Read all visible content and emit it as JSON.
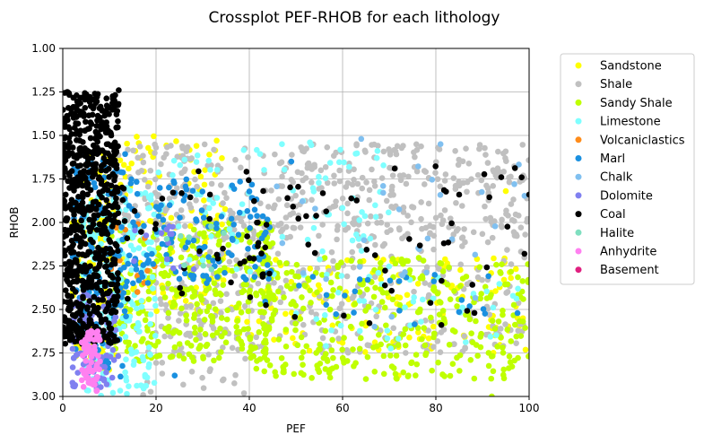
{
  "chart_data": {
    "type": "scatter",
    "title": "Crossplot PEF-RHOB for each lithology",
    "xlabel": "PEF",
    "ylabel": "RHOB",
    "xlim": [
      0,
      100
    ],
    "ylim": [
      3.0,
      1.0
    ],
    "y_inverted": true,
    "grid": true,
    "legend_position": "outside-right",
    "xticks": [
      "0",
      "20",
      "40",
      "60",
      "80",
      "100"
    ],
    "yticks": [
      "1.00",
      "1.25",
      "1.50",
      "1.75",
      "2.00",
      "2.25",
      "2.50",
      "2.75",
      "3.00"
    ],
    "series": [
      {
        "name": "Sandstone",
        "color": "#ffff00",
        "clusters": [
          {
            "x": [
              2,
              12
            ],
            "y": [
              1.6,
              2.85
            ],
            "n": 120
          },
          {
            "x": [
              12,
              35
            ],
            "y": [
              1.5,
              2.55
            ],
            "n": 110
          },
          {
            "x": [
              30,
              100
            ],
            "y": [
              2.2,
              2.75
            ],
            "n": 140
          }
        ],
        "points": [
          [
            72,
            2.88
          ],
          [
            95,
            1.82
          ],
          [
            33,
            1.53
          ]
        ]
      },
      {
        "name": "Shale",
        "color": "#c0c0c0",
        "clusters": [
          {
            "x": [
              10,
              100
            ],
            "y": [
              1.55,
              2.1
            ],
            "n": 420
          },
          {
            "x": [
              20,
              100
            ],
            "y": [
              2.0,
              2.75
            ],
            "n": 320
          },
          {
            "x": [
              14,
              40
            ],
            "y": [
              2.6,
              3.0
            ],
            "n": 40
          }
        ],
        "points": [
          [
            63,
            1.55
          ],
          [
            92,
            3.0
          ]
        ]
      },
      {
        "name": "Sandy Shale",
        "color": "#bfff00",
        "clusters": [
          {
            "x": [
              10,
              45
            ],
            "y": [
              2.0,
              2.8
            ],
            "n": 330
          },
          {
            "x": [
              40,
              100
            ],
            "y": [
              2.2,
              2.9
            ],
            "n": 340
          }
        ],
        "points": [
          [
            92,
            3.0
          ],
          [
            65,
            2.9
          ]
        ]
      },
      {
        "name": "Limestone",
        "color": "#7fffff",
        "clusters": [
          {
            "x": [
              4,
              20
            ],
            "y": [
              1.8,
              3.0
            ],
            "n": 230
          },
          {
            "x": [
              20,
              70
            ],
            "y": [
              1.55,
              2.3
            ],
            "n": 90
          },
          {
            "x": [
              50,
              100
            ],
            "y": [
              2.3,
              2.75
            ],
            "n": 40
          }
        ],
        "points": [
          [
            47,
            1.55
          ],
          [
            53,
            1.54
          ]
        ]
      },
      {
        "name": "Volcaniclastics",
        "color": "#ff8c1a",
        "clusters": [
          {
            "x": [
              10,
              20
            ],
            "y": [
              2.0,
              2.45
            ],
            "n": 14
          }
        ],
        "points": [
          [
            16,
            2.4
          ]
        ]
      },
      {
        "name": "Marl",
        "color": "#1a90e0",
        "clusters": [
          {
            "x": [
              2,
              14
            ],
            "y": [
              1.6,
              2.9
            ],
            "n": 130
          },
          {
            "x": [
              14,
              45
            ],
            "y": [
              1.75,
              2.35
            ],
            "n": 130
          },
          {
            "x": [
              40,
              100
            ],
            "y": [
              2.3,
              2.6
            ],
            "n": 25
          }
        ],
        "points": [
          [
            24,
            2.88
          ],
          [
            49,
            1.65
          ]
        ]
      },
      {
        "name": "Chalk",
        "color": "#80c0f0",
        "clusters": [
          {
            "x": [
              45,
              100
            ],
            "y": [
              1.55,
              2.6
            ],
            "n": 30
          }
        ],
        "points": [
          [
            64,
            1.52
          ],
          [
            81,
            1.55
          ]
        ]
      },
      {
        "name": "Dolomite",
        "color": "#8080f0",
        "clusters": [
          {
            "x": [
              2,
              12
            ],
            "y": [
              2.4,
              2.95
            ],
            "n": 90
          },
          {
            "x": [
              12,
              30
            ],
            "y": [
              2.0,
              2.3
            ],
            "n": 15
          }
        ],
        "points": []
      },
      {
        "name": "Coal",
        "color": "#000000",
        "clusters": [
          {
            "x": [
              0,
              12
            ],
            "y": [
              1.25,
              2.7
            ],
            "n": 700
          },
          {
            "x": [
              12,
              45
            ],
            "y": [
              1.7,
              2.5
            ],
            "n": 40
          },
          {
            "x": [
              40,
              100
            ],
            "y": [
              1.65,
              2.6
            ],
            "n": 50
          }
        ],
        "points": [
          [
            1,
            1.25
          ],
          [
            12,
            1.24
          ],
          [
            100,
            1.84
          ],
          [
            99,
            2.18
          ],
          [
            85,
            1.84
          ]
        ]
      },
      {
        "name": "Halite",
        "color": "#7fdfc0",
        "clusters": [
          {
            "x": [
              20,
              40
            ],
            "y": [
              2.0,
              2.3
            ],
            "n": 8
          }
        ],
        "points": []
      },
      {
        "name": "Anhydrite",
        "color": "#ff80f0",
        "clusters": [
          {
            "x": [
              4,
              8
            ],
            "y": [
              2.62,
              2.98
            ],
            "n": 70
          }
        ],
        "points": []
      },
      {
        "name": "Basement",
        "color": "#e02080",
        "clusters": [],
        "points": []
      }
    ]
  }
}
